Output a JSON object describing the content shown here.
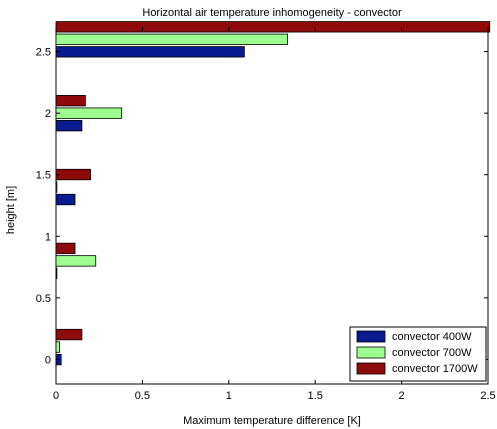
{
  "chart_data": {
    "type": "bar",
    "orientation": "horizontal",
    "title": "Horizontal air temperature inhomogeneity - convector",
    "xlabel": "Maximum temperature difference [K]",
    "ylabel": "height [m]",
    "xlim": [
      0,
      2.5
    ],
    "ylim": [
      -0.2,
      2.7
    ],
    "xticks": [
      "0",
      "0.5",
      "1",
      "1.5",
      "2",
      "2.5"
    ],
    "yticks": [
      "0",
      "0.5",
      "1",
      "1.5",
      "2",
      "2.5"
    ],
    "xtick_values": [
      0,
      0.5,
      1,
      1.5,
      2,
      2.5
    ],
    "ytick_values": [
      0,
      0.5,
      1,
      1.5,
      2,
      2.5
    ],
    "grid": false,
    "legend_position": "bottom-right",
    "categories": [
      0.1,
      0.8,
      1.4,
      2.0,
      2.6
    ],
    "series": [
      {
        "name": "convector 400W",
        "color": "#0a1a8f",
        "values": [
          0.03,
          0.005,
          0.11,
          0.15,
          1.09
        ]
      },
      {
        "name": "convector 700W",
        "color": "#9dff8f",
        "values": [
          0.02,
          0.23,
          0.005,
          0.38,
          1.34
        ]
      },
      {
        "name": "convector 1700W",
        "color": "#8f0a0a",
        "values": [
          0.15,
          0.11,
          0.2,
          0.17,
          2.51
        ]
      }
    ]
  }
}
